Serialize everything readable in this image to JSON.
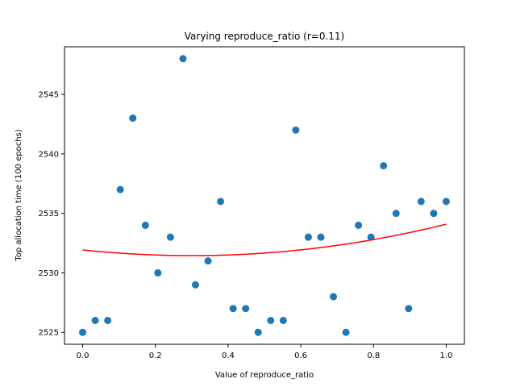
{
  "chart_data": {
    "type": "scatter",
    "title": "Varying reproduce_ratio (r=0.11)",
    "xlabel": "Value of reproduce_ratio",
    "ylabel": "Top allocation time (100 epochs)",
    "xlim": [
      -0.05,
      1.05
    ],
    "ylim": [
      2524.0,
      2549.0
    ],
    "xticks": [
      0.0,
      0.2,
      0.4,
      0.6,
      0.8,
      1.0
    ],
    "xtick_labels": [
      "0.0",
      "0.2",
      "0.4",
      "0.6",
      "0.8",
      "1.0"
    ],
    "yticks": [
      2525,
      2530,
      2535,
      2540,
      2545
    ],
    "ytick_labels": [
      "2525",
      "2530",
      "2535",
      "2540",
      "2545"
    ],
    "grid": false,
    "point_color": "#1f77b4",
    "fit_color": "#ff0000",
    "points": {
      "x": [
        0.0,
        0.0345,
        0.069,
        0.1034,
        0.1379,
        0.1724,
        0.2069,
        0.2414,
        0.2759,
        0.3103,
        0.3448,
        0.3793,
        0.4138,
        0.4483,
        0.4828,
        0.5172,
        0.5517,
        0.5862,
        0.6207,
        0.6552,
        0.6897,
        0.7241,
        0.7586,
        0.7931,
        0.8276,
        0.8621,
        0.8966,
        0.931,
        0.9655,
        1.0
      ],
      "y": [
        2525,
        2526,
        2526,
        2537,
        2543,
        2534,
        2530,
        2533,
        2548,
        2529,
        2531,
        2536,
        2527,
        2527,
        2525,
        2526,
        2526,
        2542,
        2533,
        2533,
        2528,
        2525,
        2534,
        2533,
        2539,
        2535,
        2527,
        2536,
        2535,
        2536
      ]
    },
    "fit_curve": {
      "type": "quadratic",
      "coefficients": [
        2531.93,
        -3.22,
        5.38
      ],
      "x_range": [
        0.0,
        1.0
      ]
    }
  }
}
